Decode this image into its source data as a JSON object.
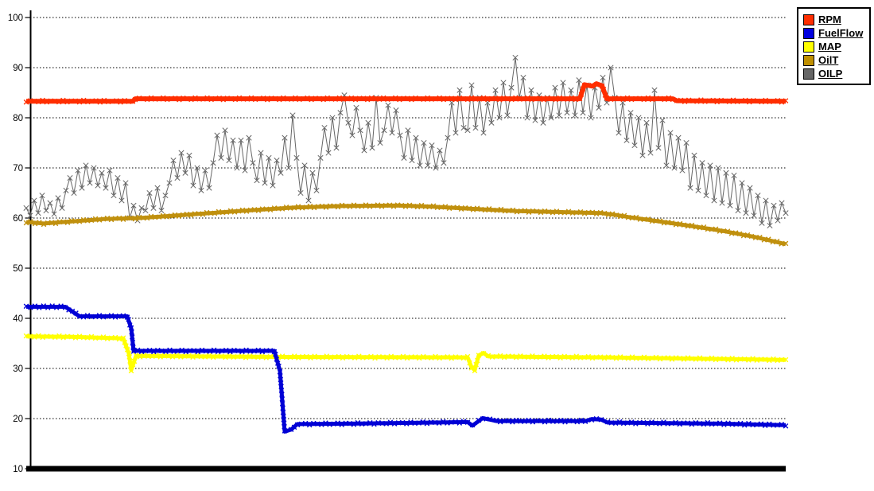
{
  "chart_data": {
    "type": "line",
    "title": "",
    "xlabel": "",
    "ylabel": "",
    "ylim": [
      10,
      100
    ],
    "y_ticks": [
      100,
      90,
      80,
      70,
      60,
      50,
      40,
      30,
      20,
      10
    ],
    "grid": {
      "horizontal": true,
      "style": "dotted"
    },
    "legend_position": "top-right",
    "baseline": {
      "value": 10,
      "color": "#000000",
      "line_width": 7
    },
    "series": [
      {
        "name": "OILP",
        "color": "#666666",
        "line_width": 1,
        "marker": "x",
        "x_start": 33,
        "x_step": 5,
        "values": [
          62,
          60.5,
          63.5,
          61,
          64.5,
          61.5,
          63,
          60.8,
          64,
          62,
          65.5,
          68,
          65,
          69.5,
          66,
          70.5,
          67,
          70,
          66.5,
          69,
          66,
          69.5,
          64.5,
          68,
          63.5,
          67,
          60,
          62.5,
          59.5,
          62,
          61.5,
          65,
          62,
          66,
          61.5,
          64.5,
          67,
          71.5,
          68,
          73,
          69,
          72.5,
          66.5,
          70,
          65.5,
          69.5,
          66,
          71,
          76.5,
          72,
          77.5,
          71.5,
          75.5,
          70,
          75.5,
          69.5,
          76,
          71,
          67.5,
          73,
          67,
          72,
          66.5,
          71.5,
          69,
          76,
          70,
          80.5,
          72,
          65,
          70.5,
          63.5,
          69,
          65.5,
          72,
          78,
          73,
          80,
          74,
          81,
          84.5,
          79,
          76.5,
          82,
          77.5,
          73.5,
          79,
          74,
          84,
          75,
          77.5,
          82.5,
          77,
          81.5,
          76.5,
          72,
          77.5,
          71.5,
          76,
          70.5,
          75,
          70.5,
          74.5,
          70,
          73.5,
          71,
          76,
          83,
          77,
          85.5,
          78,
          77.5,
          86.5,
          78,
          84,
          77,
          83,
          79,
          85.5,
          80,
          87,
          80.5,
          86,
          92,
          84,
          88,
          80,
          85.5,
          79.5,
          84.5,
          79,
          84,
          80,
          86,
          80.5,
          87,
          81,
          85.5,
          80.5,
          87.5,
          81,
          86.5,
          80,
          86,
          82,
          88,
          83,
          90,
          84,
          77,
          83,
          75.5,
          81,
          74.5,
          80,
          72.5,
          79,
          73,
          85.5,
          74,
          79.5,
          70.5,
          77,
          70,
          76,
          69.5,
          75,
          66,
          72.5,
          65.5,
          71,
          64.5,
          70.5,
          63.5,
          70,
          63,
          69,
          62.5,
          68.5,
          61.5,
          67,
          61,
          66,
          60.5,
          64.5,
          59,
          63.5,
          58.5,
          62.5,
          59.5,
          63,
          61
        ]
      },
      {
        "name": "OilT",
        "color": "#C0900E",
        "line_width": 5,
        "marker": "x",
        "points": [
          [
            33,
            59.2
          ],
          [
            55,
            58.9
          ],
          [
            80,
            59.2
          ],
          [
            130,
            59.8
          ],
          [
            175,
            60.0
          ],
          [
            230,
            60.6
          ],
          [
            300,
            61.4
          ],
          [
            370,
            62.1
          ],
          [
            430,
            62.4
          ],
          [
            500,
            62.5
          ],
          [
            540,
            62.3
          ],
          [
            600,
            61.8
          ],
          [
            650,
            61.4
          ],
          [
            700,
            61.2
          ],
          [
            755,
            61.0
          ],
          [
            775,
            60.6
          ],
          [
            790,
            60.2
          ],
          [
            830,
            59.3
          ],
          [
            870,
            58.4
          ],
          [
            910,
            57.4
          ],
          [
            950,
            56.2
          ],
          [
            988,
            54.8
          ]
        ]
      },
      {
        "name": "MAP",
        "color": "#FFFF00",
        "line_width": 5,
        "marker": "x",
        "points": [
          [
            33,
            36.4
          ],
          [
            90,
            36.3
          ],
          [
            155,
            36.0
          ],
          [
            162,
            33.0
          ],
          [
            165,
            29.7
          ],
          [
            171,
            32.5
          ],
          [
            350,
            32.3
          ],
          [
            588,
            32.2
          ],
          [
            593,
            30.2
          ],
          [
            597,
            29.7
          ],
          [
            602,
            32.6
          ],
          [
            608,
            33.1
          ],
          [
            614,
            32.4
          ],
          [
            760,
            32.2
          ],
          [
            900,
            31.9
          ],
          [
            988,
            31.7
          ]
        ]
      },
      {
        "name": "FuelFlow",
        "color": "#0000D5",
        "line_width": 5,
        "marker": "x",
        "points": [
          [
            33,
            42.3
          ],
          [
            82,
            42.3
          ],
          [
            100,
            40.4
          ],
          [
            160,
            40.4
          ],
          [
            165,
            38.0
          ],
          [
            168,
            33.5
          ],
          [
            345,
            33.5
          ],
          [
            352,
            29.5
          ],
          [
            358,
            17.4
          ],
          [
            366,
            17.8
          ],
          [
            374,
            18.9
          ],
          [
            450,
            19.0
          ],
          [
            588,
            19.3
          ],
          [
            594,
            18.6
          ],
          [
            602,
            19.5
          ],
          [
            607,
            20.1
          ],
          [
            616,
            19.8
          ],
          [
            624,
            19.5
          ],
          [
            736,
            19.5
          ],
          [
            744,
            19.9
          ],
          [
            756,
            19.8
          ],
          [
            764,
            19.2
          ],
          [
            900,
            19.0
          ],
          [
            988,
            18.7
          ]
        ]
      },
      {
        "name": "RPM",
        "color": "#FF2E00",
        "line_width": 6,
        "marker": "x",
        "points": [
          [
            33,
            83.3
          ],
          [
            167,
            83.3
          ],
          [
            170,
            83.8
          ],
          [
            729,
            83.8
          ],
          [
            735,
            86.6
          ],
          [
            745,
            86.3
          ],
          [
            750,
            86.8
          ],
          [
            757,
            86.4
          ],
          [
            763,
            83.8
          ],
          [
            846,
            83.8
          ],
          [
            851,
            83.4
          ],
          [
            988,
            83.3
          ]
        ]
      }
    ]
  },
  "legend": {
    "position": "top-right",
    "items": [
      {
        "label": "RPM",
        "color": "#FF2E00"
      },
      {
        "label": "FuelFlow",
        "color": "#0000E0"
      },
      {
        "label": "MAP",
        "color": "#FFFF00"
      },
      {
        "label": "OilT",
        "color": "#BF8F00"
      },
      {
        "label": "OILP",
        "color": "#666666"
      }
    ]
  }
}
